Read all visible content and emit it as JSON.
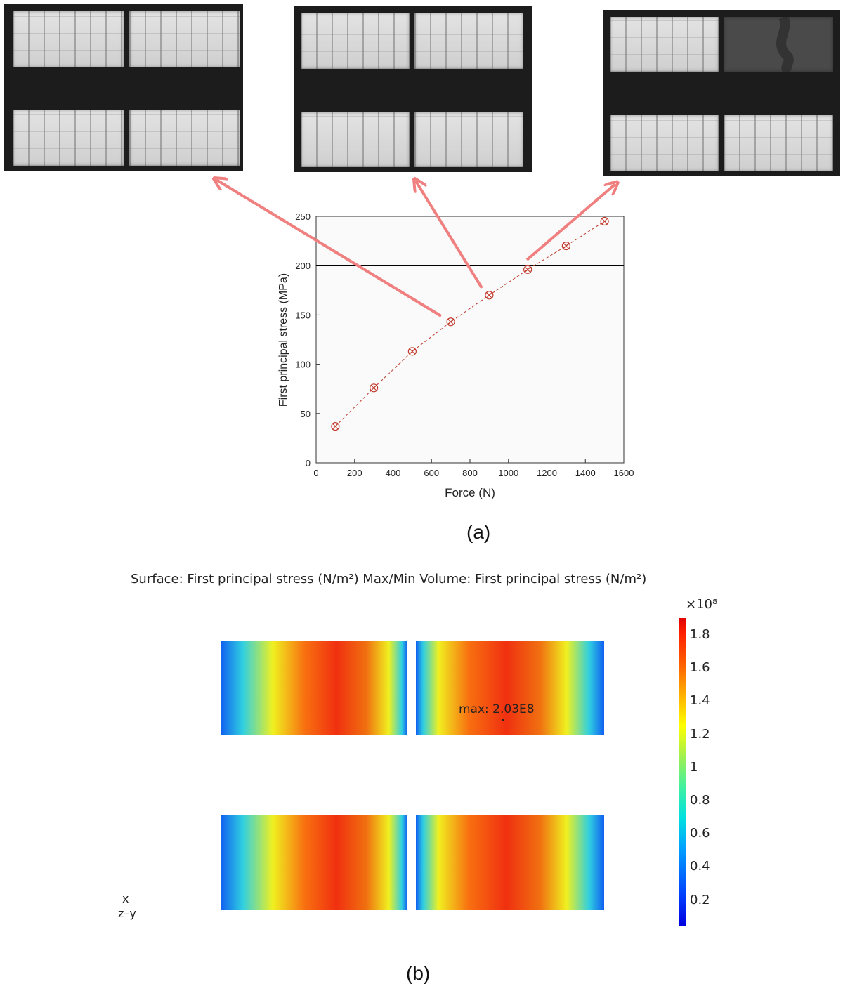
{
  "panel_a": {
    "caption": "(a)",
    "el_images": [
      {
        "label": "EL image at 700 N",
        "cracked": false
      },
      {
        "label": "EL image at 900 N",
        "cracked": false
      },
      {
        "label": "EL image at 1100 N",
        "cracked": true
      }
    ]
  },
  "panel_b": {
    "caption": "(b)",
    "title": "Surface: First principal stress (N/m²)  Max/Min Volume: First principal stress (N/m²)",
    "max_label": "max: 2.03E8",
    "colorbar": {
      "exponent": "×10⁸",
      "ticks": [
        "1.8",
        "1.6",
        "1.4",
        "1.2",
        "1",
        "0.8",
        "0.6",
        "0.4",
        "0.2"
      ]
    },
    "axis_x": "x",
    "axis_zy": "z–y"
  },
  "colors": {
    "marker": "#c0392b",
    "arrow": "#f08080",
    "threshold": "#000000"
  },
  "chart_data": {
    "type": "scatter",
    "xlabel": "Force (N)",
    "ylabel": "First principal stress (MPa)",
    "xlim": [
      0,
      1600
    ],
    "ylim": [
      0,
      250
    ],
    "xticks": [
      "0",
      "200",
      "400",
      "600",
      "800",
      "1000",
      "1200",
      "1400",
      "1600"
    ],
    "yticks": [
      "0",
      "50",
      "100",
      "150",
      "200",
      "250"
    ],
    "threshold": 200,
    "grid": false,
    "series": [
      {
        "x": [
          100,
          300,
          500,
          700,
          900,
          1100,
          1300,
          1500
        ],
        "y": [
          37,
          76,
          113,
          143,
          170,
          196,
          220,
          245
        ],
        "line": "dashed",
        "marker": "circle-x"
      }
    ]
  }
}
